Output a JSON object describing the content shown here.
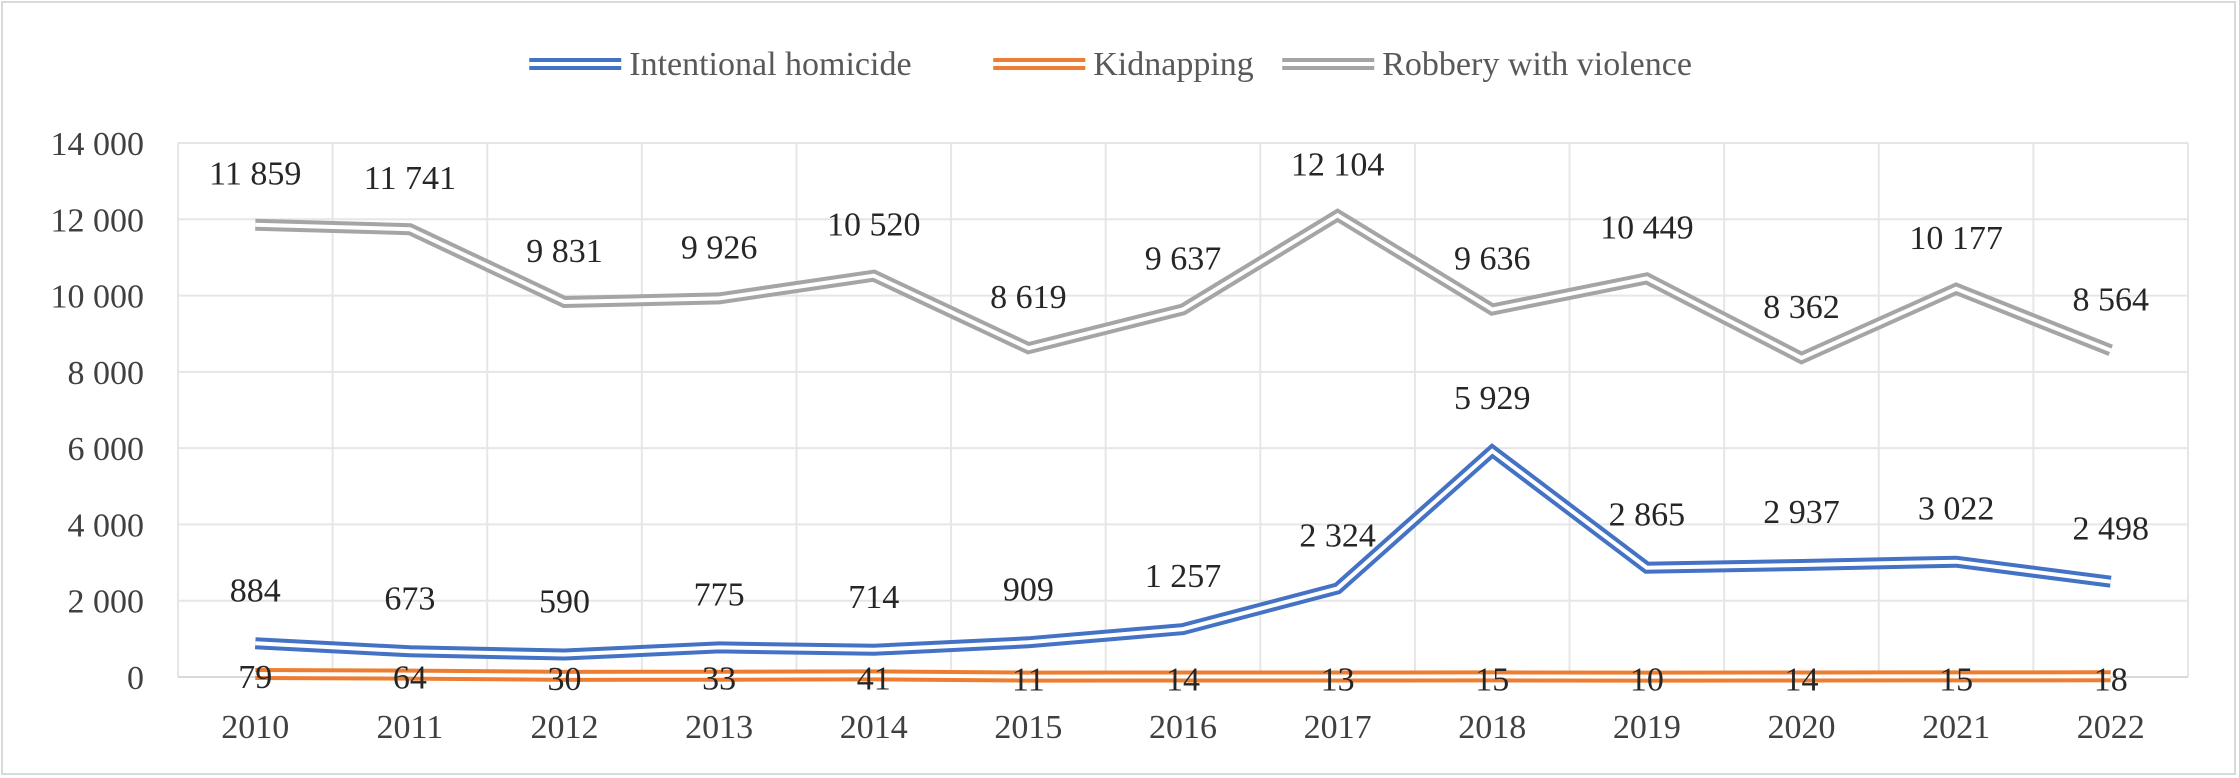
{
  "chart_data": {
    "type": "line",
    "title": "",
    "xlabel": "",
    "ylabel": "",
    "ylim": [
      0,
      14000
    ],
    "y_ticks": [
      0,
      2000,
      4000,
      6000,
      8000,
      10000,
      12000,
      14000
    ],
    "y_tick_labels": [
      "0",
      "2 000",
      "4 000",
      "6 000",
      "8 000",
      "10 000",
      "12 000",
      "14 000"
    ],
    "grid": true,
    "legend_position": "top-center",
    "categories": [
      "2010",
      "2011",
      "2012",
      "2013",
      "2014",
      "2015",
      "2016",
      "2017",
      "2018",
      "2019",
      "2020",
      "2021",
      "2022"
    ],
    "series": [
      {
        "name": "Intentional homicide",
        "color": "#4472c4",
        "values": [
          884,
          673,
          590,
          775,
          714,
          909,
          1257,
          2324,
          5929,
          2865,
          2937,
          3022,
          2498
        ],
        "labels": [
          "884",
          "673",
          "590",
          "775",
          "714",
          "909",
          "1 257",
          "2 324",
          "5 929",
          "2 865",
          "2 937",
          "3 022",
          "2 498"
        ]
      },
      {
        "name": "Kidnapping",
        "color": "#ed7d31",
        "values": [
          79,
          64,
          30,
          33,
          41,
          11,
          14,
          13,
          15,
          10,
          14,
          15,
          18
        ],
        "labels": [
          "79",
          "64",
          "30",
          "33",
          "41",
          "11",
          "14",
          "13",
          "15",
          "10",
          "14",
          "15",
          "18"
        ]
      },
      {
        "name": "Robbery with violence",
        "color": "#a5a5a5",
        "values": [
          11859,
          11741,
          9831,
          9926,
          10520,
          8619,
          9637,
          12104,
          9636,
          10449,
          8362,
          10177,
          8564
        ],
        "labels": [
          "11 859",
          "11 741",
          "9 831",
          "9 926",
          "10 520",
          "8 619",
          "9 637",
          "12 104",
          "9 636",
          "10 449",
          "8 362",
          "10 177",
          "8 564"
        ]
      }
    ]
  }
}
